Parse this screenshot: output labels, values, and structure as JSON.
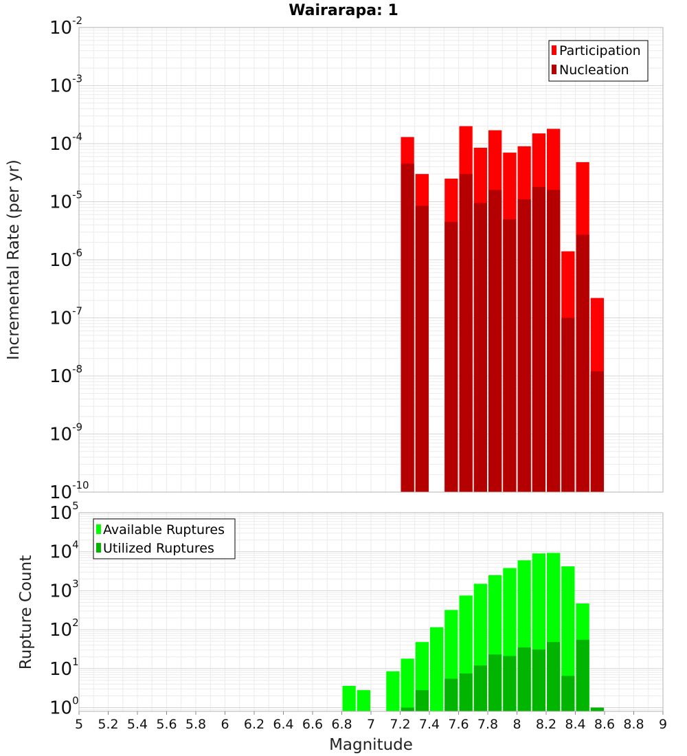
{
  "chart_data": [
    {
      "type": "bar",
      "title": "Wairarapa: 1",
      "ylabel": "Incremental Rate (per yr)",
      "xlabel": "",
      "yscale": "log",
      "ylim": [
        1e-10,
        0.01
      ],
      "xlim": [
        5,
        9
      ],
      "x": [
        7.25,
        7.35,
        7.55,
        7.65,
        7.75,
        7.85,
        7.95,
        8.05,
        8.15,
        8.25,
        8.35,
        8.45,
        8.55
      ],
      "series": [
        {
          "name": "Participation",
          "color": "#ff0000",
          "values": [
            0.00013,
            3e-05,
            2.5e-05,
            0.0002,
            8.5e-05,
            0.00017,
            7e-05,
            9e-05,
            0.00015,
            0.00018,
            1.4e-06,
            4.8e-05,
            2.2e-07
          ]
        },
        {
          "name": "Nucleation",
          "color": "#b40000",
          "values": [
            4.5e-05,
            8.5e-06,
            4.5e-06,
            3e-05,
            9.5e-06,
            1.6e-05,
            5e-06,
            1.1e-05,
            1.8e-05,
            1.6e-05,
            1e-07,
            2.7e-06,
            1.2e-08
          ]
        }
      ],
      "yticks": [
        {
          "base": "10",
          "exp": "-2"
        },
        {
          "base": "10",
          "exp": "-3"
        },
        {
          "base": "10",
          "exp": "-4"
        },
        {
          "base": "10",
          "exp": "-5"
        },
        {
          "base": "10",
          "exp": "-6"
        },
        {
          "base": "10",
          "exp": "-7"
        },
        {
          "base": "10",
          "exp": "-8"
        },
        {
          "base": "10",
          "exp": "-9"
        },
        {
          "base": "10",
          "exp": "-10"
        }
      ],
      "grid": true,
      "legend_position": "top-right"
    },
    {
      "type": "bar",
      "title": "",
      "ylabel": "Rupture Count",
      "xlabel": "Magnitude",
      "yscale": "log",
      "ylim": [
        0.8,
        100000
      ],
      "xlim": [
        5,
        9
      ],
      "x": [
        6.85,
        6.95,
        7.15,
        7.25,
        7.35,
        7.45,
        7.55,
        7.65,
        7.75,
        7.85,
        7.95,
        8.05,
        8.15,
        8.25,
        8.35,
        8.45,
        8.55
      ],
      "series": [
        {
          "name": "Available Ruptures",
          "color": "#00ff00",
          "values": [
            3.6,
            2.8,
            8.5,
            18,
            48,
            115,
            320,
            750,
            1500,
            2500,
            3800,
            6000,
            9000,
            9300,
            4200,
            470,
            0
          ]
        },
        {
          "name": "Utilized Ruptures",
          "color": "#00b400",
          "values": [
            0,
            0,
            0,
            1,
            2.8,
            0,
            5.5,
            7.5,
            12,
            23,
            21,
            35,
            31,
            48,
            6.5,
            55,
            1
          ]
        }
      ],
      "yticks": [
        {
          "base": "10",
          "exp": "5"
        },
        {
          "base": "10",
          "exp": "4"
        },
        {
          "base": "10",
          "exp": "3"
        },
        {
          "base": "10",
          "exp": "2"
        },
        {
          "base": "10",
          "exp": "1"
        },
        {
          "base": "10",
          "exp": "0"
        }
      ],
      "xticks": [
        "5",
        "5.2",
        "5.4",
        "5.6",
        "5.8",
        "6",
        "6.2",
        "6.4",
        "6.6",
        "6.8",
        "7",
        "7.2",
        "7.4",
        "7.6",
        "7.8",
        "8",
        "8.2",
        "8.4",
        "8.6",
        "8.8",
        "9"
      ],
      "grid": true,
      "legend_position": "top-left"
    }
  ]
}
